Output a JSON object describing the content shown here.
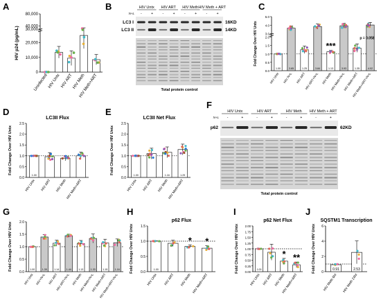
{
  "colors": {
    "bar_light": "#ffffff",
    "bar_gray": "#c9c9c9",
    "bar_stroke": "#222222",
    "dot_palette": [
      "#e8b23a",
      "#f06aa0",
      "#3fb9c9",
      "#6ab04c",
      "#e0655a",
      "#8e5bb5",
      "#a0522d",
      "#2b7bd6"
    ],
    "blot_bg": "#d7d7d7",
    "blot_band": "#1e1e1e",
    "ref_line": "#000000"
  },
  "panels": [
    {
      "letter": "A"
    },
    {
      "letter": "B"
    },
    {
      "letter": "C"
    },
    {
      "letter": "D"
    },
    {
      "letter": "E"
    },
    {
      "letter": "F"
    },
    {
      "letter": "G"
    },
    {
      "letter": "H"
    },
    {
      "letter": "I"
    },
    {
      "letter": "J"
    }
  ],
  "blots": {
    "B": {
      "groups": [
        "HIV Untx",
        "HIV ART",
        "HIV Meth",
        "HIV Meth + ART"
      ],
      "nl_label": "N+L",
      "lane_marks": [
        "-",
        "+",
        "-",
        "+",
        "-",
        "+",
        "-",
        "+"
      ],
      "band_labels": [
        "LC3 I",
        "LC3 II"
      ],
      "kd_labels": [
        "16KD",
        "14KD"
      ],
      "caption": "Total protein control"
    },
    "F": {
      "groups": [
        "HIV Untx",
        "HIV ART",
        "HIV Meth",
        "HIV Meth + ART"
      ],
      "nl_label": "N+L",
      "lane_marks": [
        "-",
        "+",
        "-",
        "+",
        "-",
        "+",
        "-",
        "+"
      ],
      "band_labels": [
        "p62"
      ],
      "kd_labels": [
        "62KD"
      ],
      "caption": "Total protein control"
    }
  },
  "chart_data": [
    {
      "panel": "A",
      "type": "bar",
      "title": "",
      "ylabel": "HIV p24 (pg/mL)",
      "categories": [
        "Uninfected",
        "HIV Untx",
        "HIV ART",
        "HIV Meth",
        "HIV Meth+ART"
      ],
      "values": [
        50,
        13500,
        9500,
        25000,
        8500
      ],
      "errors": [
        50,
        4000,
        5000,
        9000,
        3500
      ],
      "yticks_low": [
        "0",
        "10,000",
        "20,000"
      ],
      "yticks_high": [
        "30,000",
        "40,000",
        "80,000"
      ],
      "ylim": [
        0,
        80000
      ],
      "axis_break": [
        27000,
        30000
      ]
    },
    {
      "panel": "C",
      "type": "bar",
      "title": "",
      "ylabel": "Fold Change Over HIV Untx",
      "categories": [
        "HIV Untx",
        "HIV N+L",
        "HIV ART",
        "HIV ART+N+L",
        "HIV Meth",
        "HIV Meth+N+L",
        "HIV Meth+ART",
        "HIV Meth+ART+N+L"
      ],
      "values": [
        1.0,
        3.65,
        1.25,
        3.84,
        1.13,
        3.93,
        1.35,
        4.02
      ],
      "value_labels": [
        "1.00",
        "3.65",
        "1.25",
        "3.84",
        "1.13",
        "3.93",
        "1.35",
        "4.02"
      ],
      "errors": [
        0.02,
        0.25,
        0.22,
        0.3,
        0.08,
        0.28,
        0.25,
        0.3
      ],
      "yticks": [
        "0.0",
        "0.5",
        "1.0",
        "1.5",
        "2.0",
        "3.0",
        "4.0",
        "5.0"
      ],
      "ylim": [
        0,
        5
      ],
      "significance": [
        "",
        "",
        "",
        "",
        "***",
        "",
        "",
        ""
      ],
      "annotation": "p = 0.058"
    },
    {
      "panel": "D",
      "type": "bar",
      "title": "LC3II Flux",
      "ylabel": "Fold Change Over HIV Untx",
      "categories": [
        "HIV Untx",
        "HIV ART",
        "HIV Meth",
        "HIV Meth+ART"
      ],
      "values": [
        1.0,
        0.96,
        0.89,
        1.0
      ],
      "value_labels": [
        "1.00",
        "",
        "",
        ""
      ],
      "errors": [
        0.01,
        0.18,
        0.12,
        0.17
      ],
      "yticks": [
        "0.0",
        "0.5",
        "1.0",
        "1.5",
        "2.0",
        "2.5"
      ],
      "ylim": [
        0,
        2.5
      ]
    },
    {
      "panel": "E",
      "type": "bar",
      "title": "LC3II Net Flux",
      "ylabel": "Fold Change Over HIV Untx",
      "categories": [
        "HIV Untx",
        "HIV ART",
        "HIV Meth",
        "HIV Meth+ART"
      ],
      "values": [
        1.0,
        1.1,
        1.16,
        1.29
      ],
      "value_labels": [
        "1.00",
        "",
        "1.16",
        "1.29"
      ],
      "errors": [
        0.01,
        0.25,
        0.25,
        0.25
      ],
      "yticks": [
        "0.0",
        "0.5",
        "1.0",
        "1.5",
        "2.0",
        "2.5"
      ],
      "ylim": [
        0,
        2.5
      ]
    },
    {
      "panel": "G",
      "type": "bar",
      "title": "",
      "ylabel": "Fold Change Over HIV Untx",
      "categories": [
        "HIV Untx",
        "HIV+N+L",
        "HIV ART",
        "HIV ART+N+L",
        "HIV Meth",
        "HIV Meth+N+L",
        "HIV Meth+ART",
        "HIV Meth+ART+N+L"
      ],
      "values": [
        1.0,
        1.39,
        1.14,
        1.44,
        1.13,
        1.33,
        1.15,
        1.16
      ],
      "value_labels": [
        "1.00",
        "1.39",
        "1.14",
        "1.44",
        "1.13",
        "1.33",
        "1.15",
        "1.16"
      ],
      "errors": [
        0.02,
        0.1,
        0.12,
        0.06,
        0.12,
        0.18,
        0.15,
        0.15
      ],
      "yticks": [
        "0.0",
        "0.5",
        "1.0",
        "1.5",
        "2.0"
      ],
      "ylim": [
        0,
        2
      ]
    },
    {
      "panel": "H",
      "type": "bar",
      "title": "p62 Flux",
      "ylabel": "Fold Change Over HIV Untx",
      "categories": [
        "HIV Untx",
        "HIV ART",
        "HIV Meth",
        "HIV Meth+ART"
      ],
      "values": [
        1.0,
        0.93,
        0.83,
        0.77
      ],
      "value_labels": [
        "1.00",
        "",
        "",
        ""
      ],
      "errors": [
        0.01,
        0.1,
        0.05,
        0.08
      ],
      "yticks": [
        "0.0",
        "0.5",
        "1.0",
        "1.5"
      ],
      "ylim": [
        0,
        1.5
      ],
      "significance": [
        "",
        "",
        "*",
        "*"
      ]
    },
    {
      "panel": "I",
      "type": "bar",
      "title": "p62 Net Flux",
      "ylabel": "Fold Change Over HIV Untx",
      "categories": [
        "HIV Untx",
        "HIV ART",
        "HIV Meth",
        "HIV Meth+ART"
      ],
      "values": [
        1.0,
        0.85,
        0.46,
        0.3
      ],
      "value_labels": [
        "1.00",
        "",
        "",
        ""
      ],
      "errors": [
        0.01,
        0.35,
        0.12,
        0.12
      ],
      "yticks": [
        "0.00",
        "0.25",
        "0.50",
        "0.75",
        "1.00",
        "1.25",
        "1.50",
        "1.75",
        "2.00"
      ],
      "ylim": [
        0,
        2.0
      ],
      "significance": [
        "",
        "",
        "*",
        "**"
      ]
    },
    {
      "panel": "J",
      "type": "bar",
      "title": "SQSTM1 Transcription",
      "ylabel": "Fold Change Over HIV Untx",
      "categories": [
        "HIV Meth 6hr",
        "HIV Meth 24hr"
      ],
      "values": [
        0.91,
        2.53
      ],
      "value_labels": [
        "0.91",
        "2.53"
      ],
      "errors": [
        0.1,
        1.5
      ],
      "yticks": [
        "0",
        "2",
        "4",
        "6"
      ],
      "ylim": [
        0,
        6
      ]
    }
  ]
}
